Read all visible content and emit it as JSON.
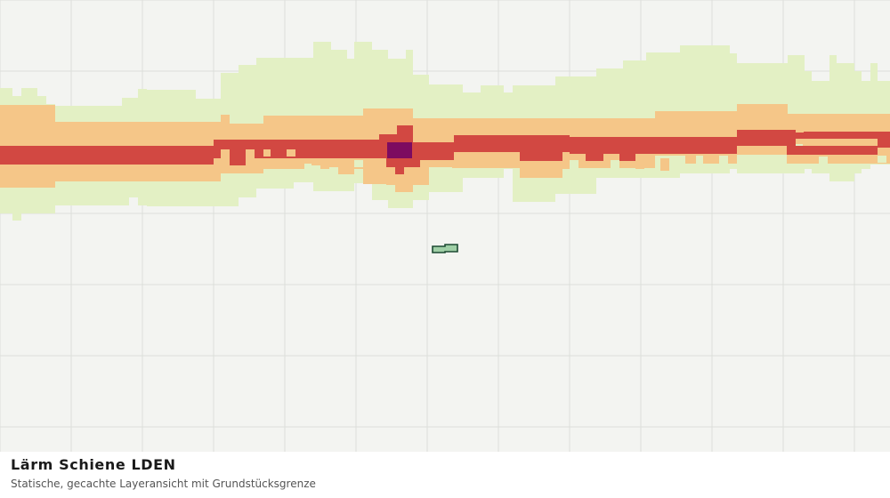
{
  "caption": {
    "title": "Lärm Schiene LDEN",
    "subtitle": "Statische, gecachte Layeransicht mit Grundstücksgrenze"
  },
  "colors": {
    "background": "#f3f4f1",
    "grid": "#dcdedb",
    "level_1": "#e3f0c4",
    "level_2": "#f5c688",
    "level_3": "#d24842",
    "level_4": "#7d0b60",
    "parcel_fill": "#9fcfa6",
    "parcel_stroke": "#1d4a33"
  },
  "legend_levels": [
    "level_1",
    "level_2",
    "level_3",
    "level_4"
  ]
}
